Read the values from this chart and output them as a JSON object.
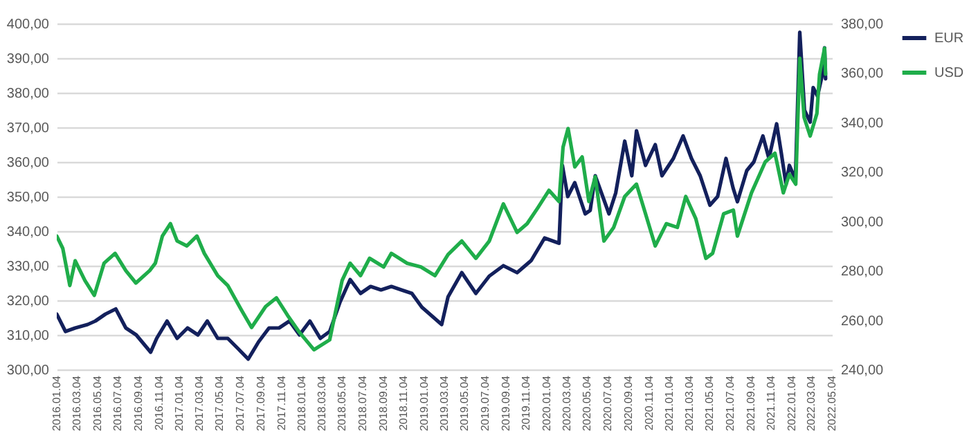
{
  "chart_data": {
    "type": "line",
    "series": [
      {
        "name": "EUR",
        "color": "#13205c",
        "axis": "y",
        "x": [
          "2016-01-04",
          "2016-01-30",
          "2016-02-28",
          "2016-04-05",
          "2016-04-28",
          "2016-05-28",
          "2016-06-28",
          "2016-07-28",
          "2016-08-28",
          "2016-10-10",
          "2016-10-28",
          "2016-11-28",
          "2016-12-28",
          "2017-01-28",
          "2017-02-28",
          "2017-03-28",
          "2017-04-28",
          "2017-05-28",
          "2017-06-28",
          "2017-07-28",
          "2017-08-28",
          "2017-09-28",
          "2017-10-28",
          "2017-11-28",
          "2017-12-28",
          "2018-01-28",
          "2018-02-28",
          "2018-03-28",
          "2018-04-28",
          "2018-05-28",
          "2018-06-28",
          "2018-07-28",
          "2018-08-28",
          "2018-09-28",
          "2018-10-28",
          "2018-11-28",
          "2018-12-28",
          "2019-02-25",
          "2019-03-16",
          "2019-04-26",
          "2019-06-07",
          "2019-07-17",
          "2019-08-28",
          "2019-10-08",
          "2019-11-19",
          "2019-12-29",
          "2020-02-10",
          "2020-02-20",
          "2020-03-07",
          "2020-03-28",
          "2020-04-28",
          "2020-05-13",
          "2020-05-28",
          "2020-07-08",
          "2020-07-28",
          "2020-08-24",
          "2020-09-14",
          "2020-09-28",
          "2020-10-25",
          "2020-11-23",
          "2020-12-13",
          "2021-01-16",
          "2021-02-14",
          "2021-03-11",
          "2021-04-06",
          "2021-05-05",
          "2021-05-28",
          "2021-06-22",
          "2021-07-13",
          "2021-07-26",
          "2021-08-23",
          "2021-09-13",
          "2021-10-10",
          "2021-10-28",
          "2021-11-20",
          "2021-12-04",
          "2021-12-18",
          "2021-12-28",
          "2022-01-15",
          "2022-01-28",
          "2022-02-11",
          "2022-02-28",
          "2022-03-09",
          "2022-03-22",
          "2022-04-06",
          "2022-04-12",
          "2022-04-15"
        ],
        "values": [
          316,
          311,
          312,
          313,
          314,
          316,
          317.5,
          312,
          310,
          305,
          309,
          314,
          309,
          312,
          310,
          314,
          309,
          309,
          306,
          303,
          308,
          312,
          312,
          314,
          310,
          314,
          309,
          311,
          319.5,
          326,
          322,
          324,
          323,
          324,
          323,
          322,
          318,
          313,
          321,
          328,
          322,
          327,
          330,
          328,
          331.5,
          338,
          336.5,
          359,
          350,
          354,
          345,
          346,
          356,
          345,
          351,
          366,
          356,
          369,
          359,
          365,
          356,
          361,
          367.5,
          361,
          356,
          347.5,
          350,
          361,
          352.5,
          348.5,
          357.5,
          360,
          367.5,
          361,
          371,
          362.5,
          353.5,
          359,
          355,
          397.5,
          375,
          371.5,
          381.5,
          379,
          385.5,
          393,
          384
        ]
      },
      {
        "name": "USD",
        "color": "#1fad4a",
        "axis": "y2",
        "x": [
          "2016-01-04",
          "2016-01-22",
          "2016-02-12",
          "2016-02-28",
          "2016-03-28",
          "2016-04-25",
          "2016-05-24",
          "2016-06-26",
          "2016-07-28",
          "2016-08-27",
          "2016-10-07",
          "2016-10-24",
          "2016-11-14",
          "2016-12-08",
          "2016-12-28",
          "2017-01-26",
          "2017-02-25",
          "2017-03-19",
          "2017-04-28",
          "2017-05-28",
          "2017-07-08",
          "2017-08-07",
          "2017-09-18",
          "2017-10-20",
          "2017-11-22",
          "2017-12-28",
          "2018-02-09",
          "2018-03-28",
          "2018-05-04",
          "2018-05-28",
          "2018-06-28",
          "2018-07-25",
          "2018-09-05",
          "2018-09-28",
          "2018-11-14",
          "2018-12-25",
          "2019-02-05",
          "2019-03-16",
          "2019-04-26",
          "2019-06-07",
          "2019-07-17",
          "2019-08-28",
          "2019-10-08",
          "2019-11-07",
          "2019-12-09",
          "2020-01-11",
          "2020-02-10",
          "2020-02-22",
          "2020-03-08",
          "2020-03-28",
          "2020-04-19",
          "2020-05-09",
          "2020-05-28",
          "2020-06-23",
          "2020-07-22",
          "2020-08-24",
          "2020-09-28",
          "2020-10-25",
          "2020-11-23",
          "2020-12-26",
          "2021-01-28",
          "2021-02-22",
          "2021-03-24",
          "2021-04-23",
          "2021-05-13",
          "2021-06-15",
          "2021-07-14",
          "2021-07-26",
          "2021-09-06",
          "2021-10-17",
          "2021-11-15",
          "2021-12-10",
          "2021-12-28",
          "2022-01-16",
          "2022-01-28",
          "2022-02-10",
          "2022-02-28",
          "2022-03-20",
          "2022-03-28",
          "2022-04-12",
          "2022-04-15"
        ],
        "values": [
          294,
          289,
          274,
          284,
          276,
          270,
          283,
          287,
          280,
          275,
          280,
          283,
          294,
          299,
          292,
          290,
          294,
          287,
          278,
          274,
          264,
          257,
          265.5,
          269,
          262,
          255,
          248,
          252,
          276,
          283,
          278,
          285,
          281.5,
          287,
          283,
          281.5,
          278,
          286.5,
          292,
          285,
          292,
          307,
          295.5,
          299,
          305.5,
          312.5,
          308,
          330,
          337.5,
          322,
          326,
          308,
          318,
          292,
          297.5,
          310,
          315,
          303,
          290,
          299,
          297.5,
          310,
          301,
          285,
          287,
          303,
          304.5,
          294,
          311.5,
          324,
          327.5,
          311.5,
          319,
          315,
          366,
          342,
          334.5,
          343.5,
          359.5,
          370,
          359.5
        ]
      }
    ],
    "ylim": [
      300,
      400
    ],
    "yticks": [
      {
        "value": 300,
        "label": "300,00"
      },
      {
        "value": 310,
        "label": "310,00"
      },
      {
        "value": 320,
        "label": "320,00"
      },
      {
        "value": 330,
        "label": "330,00"
      },
      {
        "value": 340,
        "label": "340,00"
      },
      {
        "value": 350,
        "label": "350,00"
      },
      {
        "value": 360,
        "label": "360,00"
      },
      {
        "value": 370,
        "label": "370,00"
      },
      {
        "value": 380,
        "label": "380,00"
      },
      {
        "value": 390,
        "label": "390,00"
      },
      {
        "value": 400,
        "label": "400,00"
      }
    ],
    "y2lim": [
      240,
      380
    ],
    "y2ticks": [
      {
        "value": 240,
        "label": "240,00"
      },
      {
        "value": 260,
        "label": "260,00"
      },
      {
        "value": 280,
        "label": "280,00"
      },
      {
        "value": 300,
        "label": "300,00"
      },
      {
        "value": 320,
        "label": "320,00"
      },
      {
        "value": 340,
        "label": "340,00"
      },
      {
        "value": 360,
        "label": "360,00"
      },
      {
        "value": 380,
        "label": "380,00"
      }
    ],
    "xlim": [
      "2016-01-04",
      "2022-05-04"
    ],
    "xticks": [
      {
        "value": "2016-01-04",
        "label": "2016.01.04"
      },
      {
        "value": "2016-03-04",
        "label": "2016.03.04"
      },
      {
        "value": "2016-05-04",
        "label": "2016.05.04"
      },
      {
        "value": "2016-07-04",
        "label": "2016.07.04"
      },
      {
        "value": "2016-09-04",
        "label": "2016.09.04"
      },
      {
        "value": "2016-11-04",
        "label": "2016.11.04"
      },
      {
        "value": "2017-01-04",
        "label": "2017.01.04"
      },
      {
        "value": "2017-03-04",
        "label": "2017.03.04"
      },
      {
        "value": "2017-05-04",
        "label": "2017.05.04"
      },
      {
        "value": "2017-07-04",
        "label": "2017.07.04"
      },
      {
        "value": "2017-09-04",
        "label": "2017.09.04"
      },
      {
        "value": "2017-11-04",
        "label": "2017.11.04"
      },
      {
        "value": "2018-01-04",
        "label": "2018.01.04"
      },
      {
        "value": "2018-03-04",
        "label": "2018.03.04"
      },
      {
        "value": "2018-05-04",
        "label": "2018.05.04"
      },
      {
        "value": "2018-07-04",
        "label": "2018.07.04"
      },
      {
        "value": "2018-09-04",
        "label": "2018.09.04"
      },
      {
        "value": "2018-11-04",
        "label": "2018.11.04"
      },
      {
        "value": "2019-01-04",
        "label": "2019.01.04"
      },
      {
        "value": "2019-03-04",
        "label": "2019.03.04"
      },
      {
        "value": "2019-05-04",
        "label": "2019.05.04"
      },
      {
        "value": "2019-07-04",
        "label": "2019.07.04"
      },
      {
        "value": "2019-09-04",
        "label": "2019.09.04"
      },
      {
        "value": "2019-11-04",
        "label": "2019.11.04"
      },
      {
        "value": "2020-01-04",
        "label": "2020.01.04"
      },
      {
        "value": "2020-03-04",
        "label": "2020.03.04"
      },
      {
        "value": "2020-05-04",
        "label": "2020.05.04"
      },
      {
        "value": "2020-07-04",
        "label": "2020.07.04"
      },
      {
        "value": "2020-09-04",
        "label": "2020.09.04"
      },
      {
        "value": "2020-11-04",
        "label": "2020.11.04"
      },
      {
        "value": "2021-01-04",
        "label": "2021.01.04"
      },
      {
        "value": "2021-03-04",
        "label": "2021.03.04"
      },
      {
        "value": "2021-05-04",
        "label": "2021.05.04"
      },
      {
        "value": "2021-07-04",
        "label": "2021.07.04"
      },
      {
        "value": "2021-09-04",
        "label": "2021.09.04"
      },
      {
        "value": "2021-11-04",
        "label": "2021.11.04"
      },
      {
        "value": "2022-01-04",
        "label": "2022.01.04"
      },
      {
        "value": "2022-03-04",
        "label": "2022.03.04"
      },
      {
        "value": "2022-05-04",
        "label": "2022.05.04"
      }
    ],
    "grid": "y",
    "legend": "right",
    "marker": "none"
  }
}
